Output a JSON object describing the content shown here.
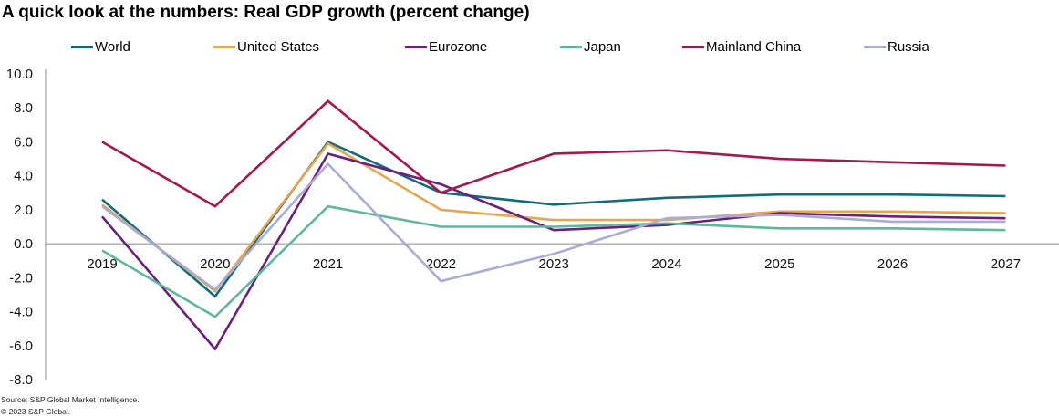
{
  "title": "A quick look at the numbers: Real GDP growth (percent change)",
  "source_line1": "Source: S&P Global Market Intelligence.",
  "source_line2": "© 2023 S&P Global.",
  "chart_data": {
    "type": "line",
    "title": "A quick look at the numbers: Real GDP growth (percent change)",
    "xlabel": "",
    "ylabel": "",
    "x": [
      "2019",
      "2020",
      "2021",
      "2022",
      "2023",
      "2024",
      "2025",
      "2026",
      "2027"
    ],
    "ylim": [
      -8.0,
      10.0
    ],
    "yticks": [
      "10.0",
      "8.0",
      "6.0",
      "4.0",
      "2.0",
      "0.0",
      "-2.0",
      "-4.0",
      "-6.0",
      "-8.0"
    ],
    "ytick_values": [
      10,
      8,
      6,
      4,
      2,
      0,
      -2,
      -4,
      -6,
      -8
    ],
    "grid": false,
    "legend_position": "top",
    "series": [
      {
        "name": "World",
        "color": "#0f6c7b",
        "values": [
          2.6,
          -3.1,
          6.0,
          3.0,
          2.3,
          2.7,
          2.9,
          2.9,
          2.8
        ]
      },
      {
        "name": "United States",
        "color": "#e8a54b",
        "values": [
          2.3,
          -2.8,
          5.9,
          2.0,
          1.4,
          1.4,
          1.9,
          1.9,
          1.8
        ]
      },
      {
        "name": "Eurozone",
        "color": "#6b1f7c",
        "values": [
          1.6,
          -6.2,
          5.3,
          3.5,
          0.8,
          1.1,
          1.8,
          1.6,
          1.5
        ]
      },
      {
        "name": "Japan",
        "color": "#5cb99b",
        "values": [
          -0.4,
          -4.3,
          2.2,
          1.0,
          1.0,
          1.2,
          0.9,
          0.9,
          0.8
        ]
      },
      {
        "name": "Mainland China",
        "color": "#a6174e",
        "values": [
          6.0,
          2.2,
          8.4,
          3.0,
          5.3,
          5.5,
          5.0,
          4.8,
          4.6
        ]
      },
      {
        "name": "Russia",
        "color": "#a9acd6",
        "values": [
          2.2,
          -2.7,
          4.7,
          -2.2,
          -0.6,
          1.5,
          1.7,
          1.3,
          1.3
        ]
      }
    ]
  }
}
